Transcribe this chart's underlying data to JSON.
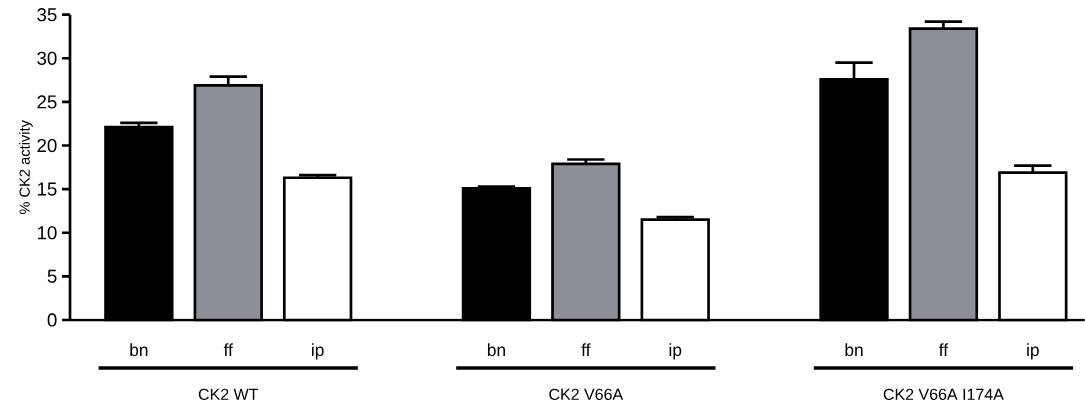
{
  "chart_data": {
    "type": "bar",
    "ylabel": "% CK2 activity",
    "categories": [
      "bn",
      "ff",
      "ip",
      null,
      "bn",
      "ff",
      "ip",
      null,
      "bn",
      "ff",
      "ip"
    ],
    "values": [
      22.1,
      26.9,
      16.3,
      null,
      15.1,
      17.9,
      11.5,
      null,
      27.6,
      33.4,
      16.9
    ],
    "errors": [
      0.5,
      1.0,
      0.3,
      null,
      0.2,
      0.5,
      0.3,
      null,
      1.9,
      0.8,
      0.8
    ],
    "colors": [
      "#000000",
      "#8c8f96",
      "#ffffff",
      null,
      "#000000",
      "#8c8f96",
      "#ffffff",
      null,
      "#000000",
      "#8c8f96",
      "#ffffff"
    ],
    "ylim": [
      0,
      35
    ],
    "yticks": [
      0,
      5,
      10,
      15,
      20,
      25,
      30,
      35
    ],
    "annotations": [
      "CK2 WT",
      "CK2 V66A",
      "CK2 V66A I174A"
    ]
  }
}
